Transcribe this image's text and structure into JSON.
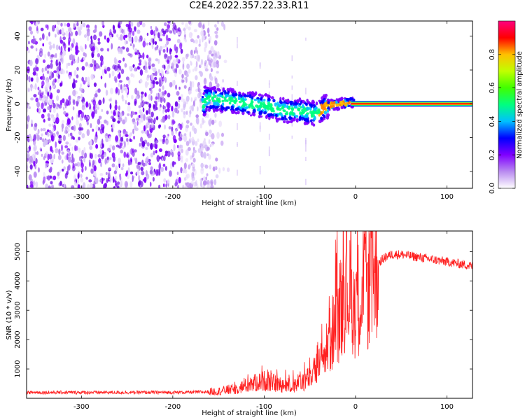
{
  "title": "C2E4.2022.357.22.33.R11",
  "chart_data": [
    {
      "type": "heatmap",
      "title": "C2E4.2022.357.22.33.R11",
      "xlabel": "Height of straight line (km)",
      "ylabel": "Frequency (Hz)",
      "xlim": [
        -360,
        128
      ],
      "ylim": [
        -50,
        49
      ],
      "xticks": [
        -300,
        -200,
        -100,
        0,
        100
      ],
      "xtick_labels": [
        "-300",
        "-200",
        "-100",
        "0",
        "100"
      ],
      "yticks": [
        40,
        20,
        0,
        -20,
        -40
      ],
      "ytick_labels": [
        "40",
        "20",
        "0",
        "-20",
        "-40"
      ],
      "colorbar": {
        "label": "Normalized spectral amplitude",
        "range": [
          0.0,
          1.0
        ],
        "ticks": [
          0.0,
          0.2,
          0.4,
          0.6,
          0.8
        ],
        "tick_labels": [
          "0.0",
          "0.2",
          "0.4",
          "0.6",
          "0.8"
        ],
        "colors": [
          "#ffffff",
          "#b98bf0",
          "#8000ff",
          "#0000ff",
          "#00c0ff",
          "#00ff80",
          "#40ff00",
          "#c0ff00",
          "#ffc000",
          "#ff0000",
          "#ff0080"
        ]
      },
      "features": {
        "noise_region_x": [
          -360,
          -150
        ],
        "signal_track": [
          [
            -165,
            3
          ],
          [
            -140,
            2
          ],
          [
            -120,
            0
          ],
          [
            -100,
            -1
          ],
          [
            -80,
            -4
          ],
          [
            -60,
            -4
          ],
          [
            -45,
            -6
          ],
          [
            -30,
            -1
          ],
          [
            -15,
            0
          ],
          [
            -5,
            1
          ],
          [
            0,
            0
          ],
          [
            128,
            0
          ]
        ],
        "flat_line_from_x": 0,
        "flat_line_value": 0
      }
    },
    {
      "type": "line",
      "xlabel": "Height of straight line (km)",
      "ylabel": "SNR (10 * v/v)",
      "xlim": [
        -360,
        128
      ],
      "ylim": [
        0,
        5700
      ],
      "xticks": [
        -300,
        -200,
        -100,
        0,
        100
      ],
      "xtick_labels": [
        "-300",
        "-200",
        "-100",
        "0",
        "100"
      ],
      "yticks": [
        1000,
        2000,
        3000,
        4000,
        5000
      ],
      "ytick_labels": [
        "1000",
        "2000",
        "3000",
        "4000",
        "5000"
      ],
      "series": [
        {
          "name": "SNR",
          "color": "#ff2020",
          "x": [
            -360,
            -300,
            -250,
            -200,
            -170,
            -150,
            -130,
            -115,
            -100,
            -85,
            -70,
            -60,
            -50,
            -40,
            -35,
            -30,
            -25,
            -20,
            -15,
            -10,
            -5,
            0,
            5,
            10,
            15,
            20,
            25,
            30,
            35,
            40,
            50,
            60,
            70,
            80,
            90,
            100,
            110,
            120,
            128
          ],
          "values": [
            200,
            200,
            200,
            200,
            210,
            240,
            330,
            480,
            600,
            480,
            430,
            550,
            700,
            1100,
            1400,
            1750,
            2300,
            2700,
            3300,
            4000,
            3300,
            3300,
            3500,
            3600,
            4000,
            4300,
            4600,
            4750,
            4850,
            4900,
            4900,
            4850,
            4800,
            4750,
            4700,
            4650,
            4600,
            4550,
            4500
          ]
        }
      ]
    }
  ]
}
